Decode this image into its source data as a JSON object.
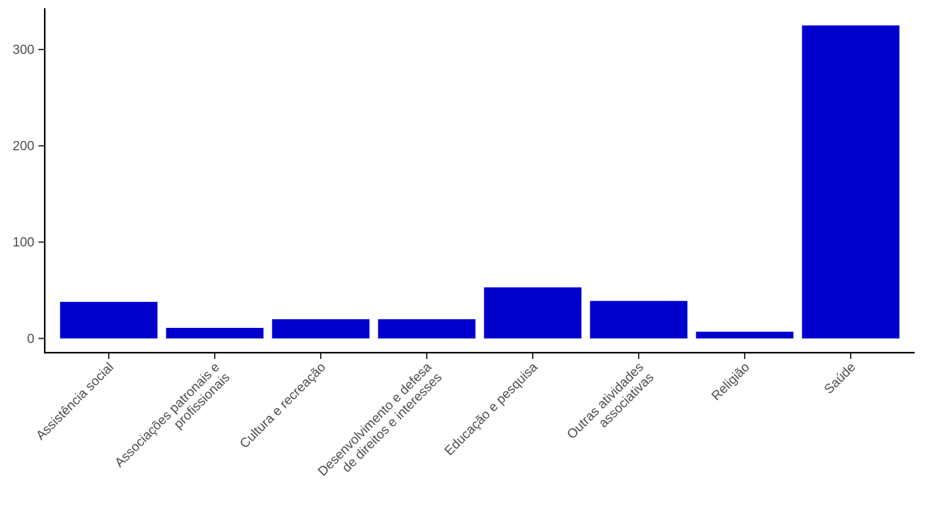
{
  "chart_data": {
    "type": "bar",
    "title": "",
    "xlabel": "",
    "ylabel": "",
    "categories": [
      "Assistência social",
      "Associações patronais e profissionais",
      "Cultura e recreação",
      "Desenvolvimento e defesa de direitos e interesses",
      "Educação e pesquisa",
      "Outras atividades associativas",
      "Religião",
      "Saúde"
    ],
    "category_label_lines": [
      [
        "Assistência social"
      ],
      [
        "Associações patronais e",
        "profissionais"
      ],
      [
        "Cultura e recreação"
      ],
      [
        "Desenvolvimento e defesa",
        "de direitos e interesses"
      ],
      [
        "Educação e pesquisa"
      ],
      [
        "Outras atividades",
        "associativas"
      ],
      [
        "Religião"
      ],
      [
        "Saúde"
      ]
    ],
    "values": [
      38,
      11,
      20,
      20,
      53,
      39,
      7,
      325
    ],
    "yticks": [
      0,
      100,
      200,
      300
    ],
    "ytick_labels": [
      "0",
      "100",
      "200",
      "300"
    ],
    "ylim": [
      -16,
      341
    ],
    "grid": "off",
    "legend": "none",
    "x_label_angle_deg": 45,
    "colors": {
      "bar_fill": "#0000CD",
      "axis_line": "#000000",
      "tick_mark": "#333333",
      "tick_label": "#4D4D4D",
      "background": "#FFFFFF"
    }
  }
}
